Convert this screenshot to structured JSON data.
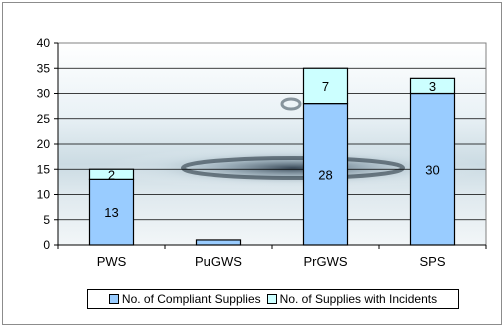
{
  "chart_data": {
    "type": "bar",
    "stacked": true,
    "categories": [
      "PWS",
      "PuGWS",
      "PrGWS",
      "SPS"
    ],
    "series": [
      {
        "name": "No. of Compliant Supplies",
        "values": [
          13,
          1,
          28,
          30
        ],
        "labels": [
          "13",
          "",
          "28",
          "30"
        ],
        "color": "#99ccff"
      },
      {
        "name": "No. of Supplies with Incidents",
        "values": [
          2,
          0,
          7,
          3
        ],
        "labels": [
          "2",
          "",
          "7",
          "3"
        ],
        "color": "#ccffff"
      }
    ],
    "ylim": [
      0,
      40
    ],
    "yticks": [
      "0",
      "5",
      "10",
      "15",
      "20",
      "25",
      "30",
      "35",
      "40"
    ],
    "grid": true,
    "legend": "bottom"
  }
}
